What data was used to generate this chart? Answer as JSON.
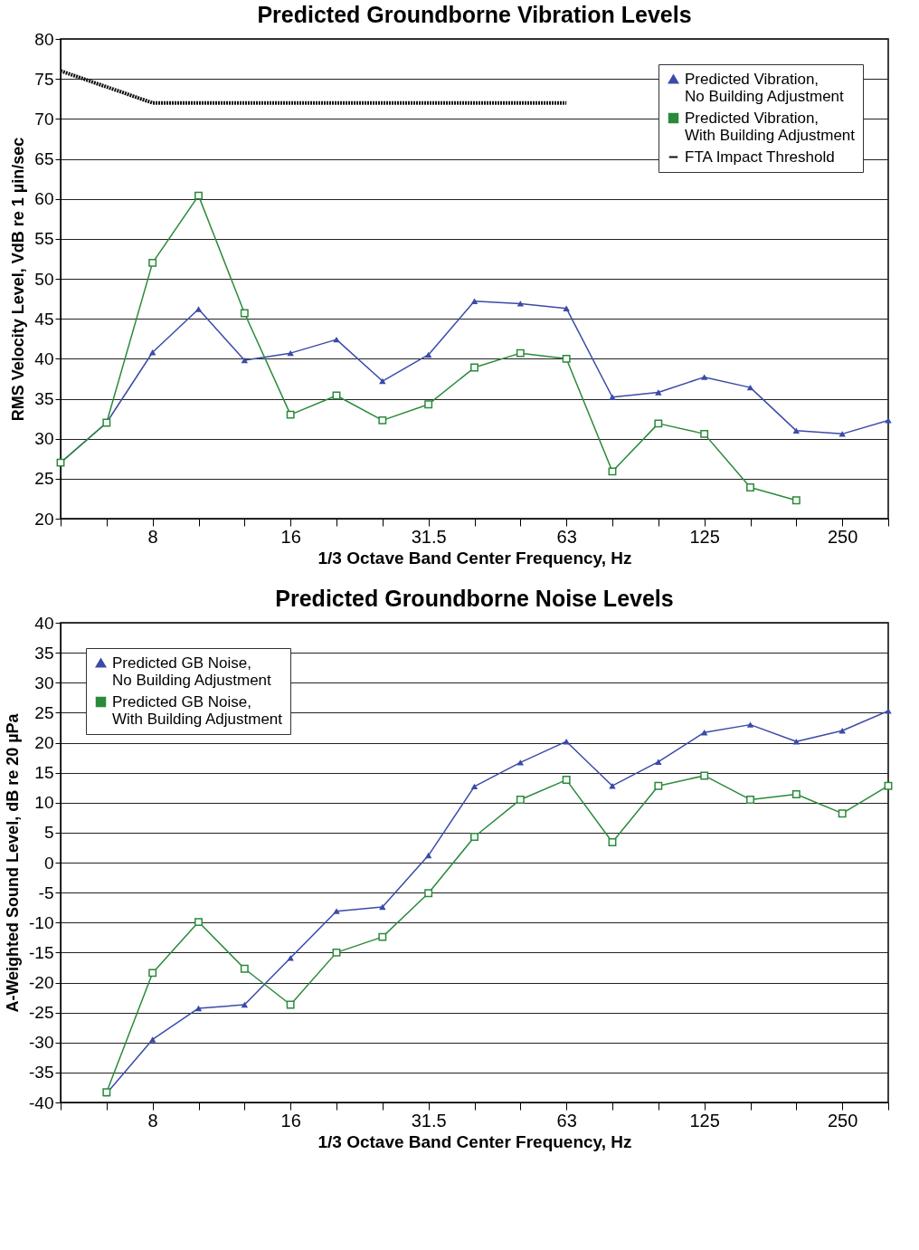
{
  "chart_data": [
    {
      "type": "line",
      "title": "Predicted Groundborne Vibration Levels",
      "xlabel": "1/3 Octave Band Center Frequency, Hz",
      "ylabel": "RMS Velocity Level, VdB re 1 µin/sec",
      "categories": [
        null,
        null,
        "8",
        null,
        null,
        "16",
        null,
        null,
        "31.5",
        null,
        null,
        "63",
        null,
        null,
        "125",
        null,
        null,
        "250",
        null
      ],
      "series": [
        {
          "name": "Predicted Vibration, No Building Adjustment",
          "color": "#3a4ba8",
          "marker": "triangle",
          "line_style": "solid",
          "values": [
            27,
            32,
            40.8,
            46.2,
            39.8,
            40.7,
            42.4,
            37.2,
            40.5,
            47.2,
            46.9,
            46.3,
            35.2,
            35.8,
            37.7,
            36.4,
            31,
            30.6,
            32.3
          ]
        },
        {
          "name": "Predicted Vibration, With Building Adjustment",
          "color": "#2a8a3a",
          "marker": "square",
          "line_style": "solid",
          "values": [
            27,
            32,
            52,
            60.4,
            45.7,
            33,
            35.4,
            32.3,
            34.3,
            38.9,
            40.7,
            40,
            25.9,
            31.9,
            30.6,
            23.9,
            22.3,
            null,
            null
          ]
        },
        {
          "name": "FTA Impact Threshold",
          "color": "#111111",
          "marker": "none",
          "line_style": "dotted",
          "values": [
            76,
            74,
            72,
            72,
            72,
            72,
            72,
            72,
            72,
            72,
            72,
            72,
            null,
            null,
            null,
            null,
            null,
            null,
            null
          ]
        }
      ],
      "ylim": [
        20,
        80
      ],
      "yticks": [
        20,
        25,
        30,
        35,
        40,
        45,
        50,
        55,
        60,
        65,
        70,
        75,
        80
      ],
      "grid": "y",
      "legend": "top right"
    },
    {
      "type": "line",
      "title": "Predicted Groundborne Noise Levels",
      "xlabel": "1/3 Octave Band Center Frequency, Hz",
      "ylabel": "A-Weighted Sound Level, dB re 20 µPa",
      "categories": [
        null,
        null,
        "8",
        null,
        null,
        "16",
        null,
        null,
        "31.5",
        null,
        null,
        "63",
        null,
        null,
        "125",
        null,
        null,
        "250",
        null
      ],
      "series": [
        {
          "name": "Predicted GB Noise, No Building Adjustment",
          "color": "#3a4ba8",
          "marker": "triangle",
          "line_style": "solid",
          "values": [
            null,
            -38.5,
            -29.5,
            -24.3,
            -23.7,
            -15.9,
            -8.1,
            -7.4,
            1.2,
            12.7,
            16.7,
            20.2,
            12.8,
            16.8,
            21.7,
            23,
            20.2,
            22,
            25.3
          ]
        },
        {
          "name": "Predicted GB Noise, With Building Adjustment",
          "color": "#2a8a3a",
          "marker": "square",
          "line_style": "solid",
          "values": [
            null,
            -38.3,
            -18.4,
            -9.9,
            -17.7,
            -23.7,
            -15,
            -12.4,
            -5.1,
            4.3,
            10.5,
            13.8,
            3.4,
            12.8,
            14.5,
            10.5,
            11.4,
            8.2,
            12.8
          ]
        }
      ],
      "ylim": [
        -40,
        40
      ],
      "yticks": [
        -40,
        -35,
        -30,
        -25,
        -20,
        -15,
        -10,
        -5,
        0,
        5,
        10,
        15,
        20,
        25,
        30,
        35,
        40
      ],
      "grid": "y",
      "legend": "top left"
    }
  ]
}
